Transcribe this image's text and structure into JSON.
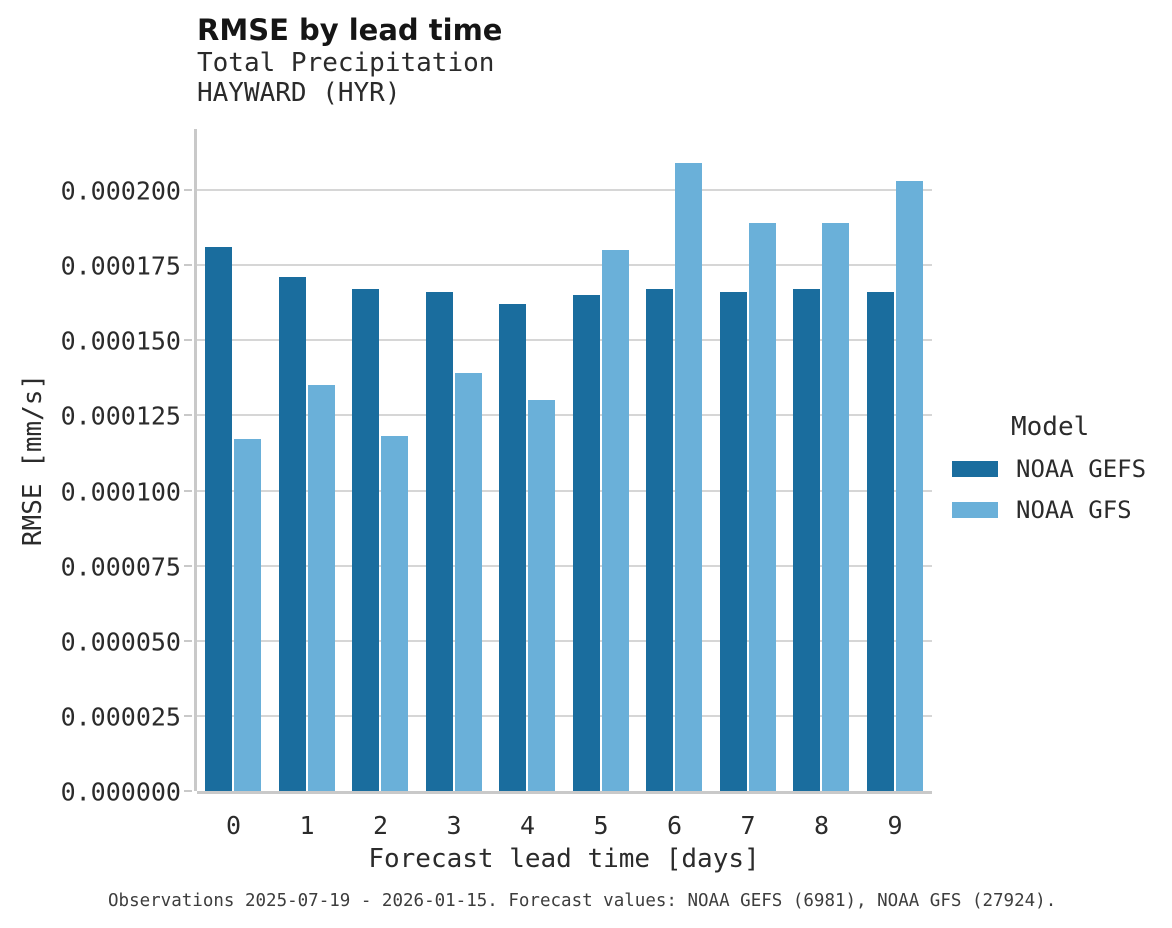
{
  "header": {
    "title": "RMSE by lead time",
    "subtitle1": "Total Precipitation",
    "subtitle2": "HAYWARD (HYR)"
  },
  "footer": {
    "caption": "Observations 2025-07-19 - 2026-01-15. Forecast values: NOAA GEFS (6981), NOAA GFS (27924)."
  },
  "legend": {
    "title": "Model",
    "entries": [
      {
        "label": "NOAA GEFS",
        "color": "#1a6d9e"
      },
      {
        "label": "NOAA GFS",
        "color": "#6ab0d9"
      }
    ]
  },
  "colors": {
    "gefs_bar": "#1a6d9e",
    "gfs_bar": "#6ab0d9",
    "gridline": "#d6d6d6",
    "axis_spine": "#c9c9c9"
  },
  "chart_data": {
    "type": "bar",
    "title": "RMSE by lead time",
    "subtitle": "Total Precipitation — HAYWARD (HYR)",
    "xlabel": "Forecast lead time [days]",
    "ylabel": "RMSE [mm/s]",
    "categories": [
      "0",
      "1",
      "2",
      "3",
      "4",
      "5",
      "6",
      "7",
      "8",
      "9"
    ],
    "series": [
      {
        "name": "NOAA GEFS",
        "color": "#1a6d9e",
        "values": [
          0.000181,
          0.000171,
          0.000167,
          0.000166,
          0.000162,
          0.000165,
          0.000167,
          0.000166,
          0.000167,
          0.000166
        ]
      },
      {
        "name": "NOAA GFS",
        "color": "#6ab0d9",
        "values": [
          0.000117,
          0.000135,
          0.000118,
          0.000139,
          0.00013,
          0.00018,
          0.000209,
          0.000189,
          0.000189,
          0.000203
        ]
      }
    ],
    "ylim": [
      0,
      0.0002203
    ],
    "yticks": [
      0.0,
      2.5e-05,
      5e-05,
      7.5e-05,
      0.0001,
      0.000125,
      0.00015,
      0.000175,
      0.0002
    ],
    "ytick_labels": [
      "0.000000",
      "0.000025",
      "0.000050",
      "0.000075",
      "0.000100",
      "0.000125",
      "0.000150",
      "0.000175",
      "0.000200"
    ],
    "grid": "horizontal",
    "legend_position": "right",
    "legend_title": "Model"
  }
}
